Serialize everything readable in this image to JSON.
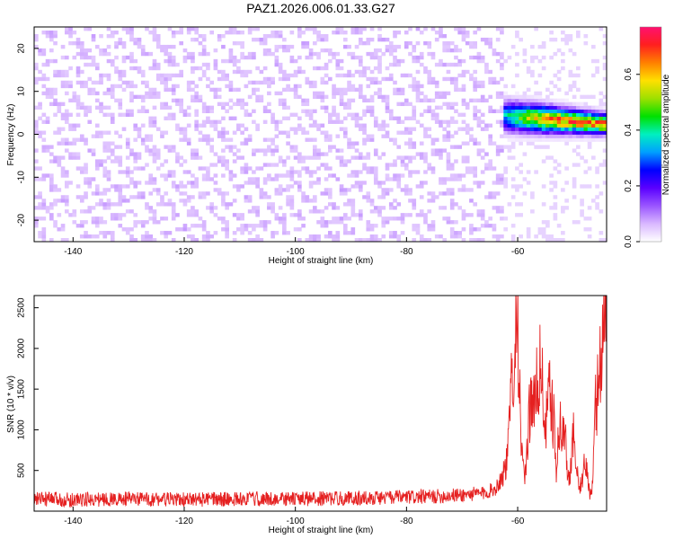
{
  "chart_data": [
    {
      "type": "heatmap",
      "title": "PAZ1.2026.006.01.33.G27",
      "xlabel": "Height of straight line (km)",
      "ylabel": "Frequency (Hz)",
      "xlim": [
        -147,
        -44
      ],
      "ylim": [
        -25,
        25
      ],
      "xticks": [
        "-140",
        "-120",
        "-100",
        "-80",
        "-60"
      ],
      "xtick_values": [
        -140,
        -120,
        -100,
        -80,
        -60
      ],
      "yticks": [
        "20",
        "10",
        "0",
        "-10",
        "-20"
      ],
      "ytick_values": [
        20,
        10,
        0,
        -10,
        -20
      ],
      "colorbar": {
        "label": "Normalized spectral amplitude",
        "range": [
          0.0,
          0.77
        ],
        "ticks": [
          "0.0",
          "0.2",
          "0.4",
          "0.6"
        ],
        "tick_values": [
          0.0,
          0.2,
          0.4,
          0.6
        ],
        "colors": [
          "#ffffff",
          "#d9b8ff",
          "#9a55ff",
          "#5a00ff",
          "#0000ff",
          "#00a0ff",
          "#00f0c0",
          "#00e000",
          "#9ee000",
          "#ffe000",
          "#ff8000",
          "#ff1f1f",
          "#ff1070"
        ]
      },
      "features": [
        {
          "description": "broadband low-amplitude noise",
          "x_range": [
            -147,
            -63
          ],
          "y_range": [
            -25,
            25
          ],
          "amplitude": 0.05
        },
        {
          "description": "signal band",
          "x_range": [
            -64,
            -44
          ],
          "center_frequency": [
            4,
            2
          ],
          "amplitude_peak": 0.74
        }
      ]
    },
    {
      "type": "line",
      "xlabel": "Height of straight line (km)",
      "ylabel": "SNR (10 * v/v)",
      "xlim": [
        -147,
        -44
      ],
      "ylim": [
        0,
        2650
      ],
      "xticks": [
        "-140",
        "-120",
        "-100",
        "-80",
        "-60"
      ],
      "xtick_values": [
        -140,
        -120,
        -100,
        -80,
        -60
      ],
      "yticks": [
        "500",
        "1000",
        "1500",
        "2000",
        "2500"
      ],
      "ytick_values": [
        500,
        1000,
        1500,
        2000,
        2500
      ],
      "color": "#e52020",
      "series": [
        {
          "name": "SNR",
          "x": [
            -147,
            -140,
            -130,
            -120,
            -110,
            -100,
            -90,
            -80,
            -75,
            -70,
            -66,
            -64,
            -63,
            -62,
            -61.5,
            -61,
            -60.6,
            -60.2,
            -60,
            -59.7,
            -59.4,
            -59,
            -58.5,
            -58,
            -57.5,
            -57,
            -56.5,
            -56,
            -55.5,
            -55,
            -54.5,
            -54,
            -53.5,
            -53,
            -52.5,
            -52,
            -51.5,
            -51,
            -50.5,
            -50,
            -49.5,
            -49,
            -48.5,
            -48,
            -47.5,
            -47,
            -46.5,
            -46,
            -45.5,
            -45,
            -44.5,
            -44
          ],
          "values": [
            150,
            140,
            150,
            140,
            150,
            150,
            160,
            170,
            180,
            200,
            220,
            280,
            400,
            580,
            1000,
            1800,
            1950,
            2450,
            2500,
            1500,
            900,
            500,
            420,
            1200,
            1450,
            1200,
            1650,
            1700,
            1600,
            900,
            1450,
            1350,
            1100,
            400,
            1150,
            900,
            1000,
            400,
            500,
            1050,
            500,
            350,
            300,
            550,
            500,
            200,
            300,
            1300,
            1500,
            2000,
            2300,
            2700
          ]
        }
      ]
    }
  ]
}
